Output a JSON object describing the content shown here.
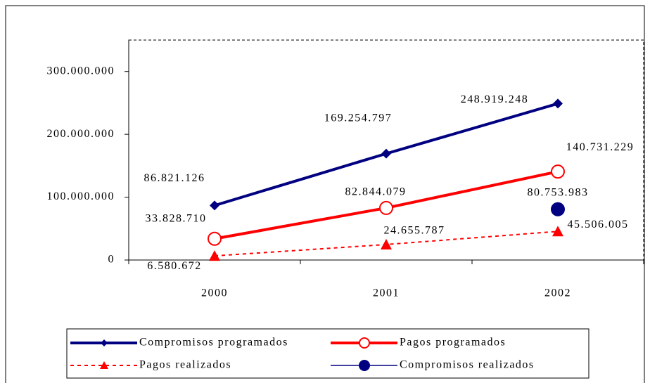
{
  "chart_data": {
    "type": "line",
    "categories": [
      "2000",
      "2001",
      "2002"
    ],
    "series": [
      {
        "name": "Compromisos programados",
        "color": "#000080",
        "marker": "diamond",
        "dash": false,
        "values": [
          86821126,
          169254797,
          248919248
        ],
        "value_labels": [
          "86.821.126",
          "169.254.797",
          "248.919.248"
        ]
      },
      {
        "name": "Pagos programados",
        "color": "#ff0000",
        "marker": "open-circle",
        "dash": false,
        "values": [
          33828710,
          82844079,
          140731229
        ],
        "value_labels": [
          "33.828.710",
          "82.844.079",
          "140.731.229"
        ]
      },
      {
        "name": "Pagos realizados",
        "color": "#ff0000",
        "marker": "triangle",
        "dash": true,
        "values": [
          6580672,
          24655787,
          45506005
        ],
        "value_labels": [
          "6.580.672",
          "24.655.787",
          "45.506.005"
        ]
      },
      {
        "name": "Compromisos realizados",
        "color": "#000080",
        "marker": "circle",
        "dash": false,
        "values": [
          null,
          null,
          80753983
        ],
        "value_labels": [
          null,
          null,
          "80.753.983"
        ]
      }
    ],
    "ylim": [
      0,
      350000000
    ],
    "yticks": [
      {
        "value": 0,
        "label": "0"
      },
      {
        "value": 100000000,
        "label": "100.000.000"
      },
      {
        "value": 200000000,
        "label": "200.000.000"
      },
      {
        "value": 300000000,
        "label": "300.000.000"
      }
    ],
    "legend": "bottom"
  }
}
